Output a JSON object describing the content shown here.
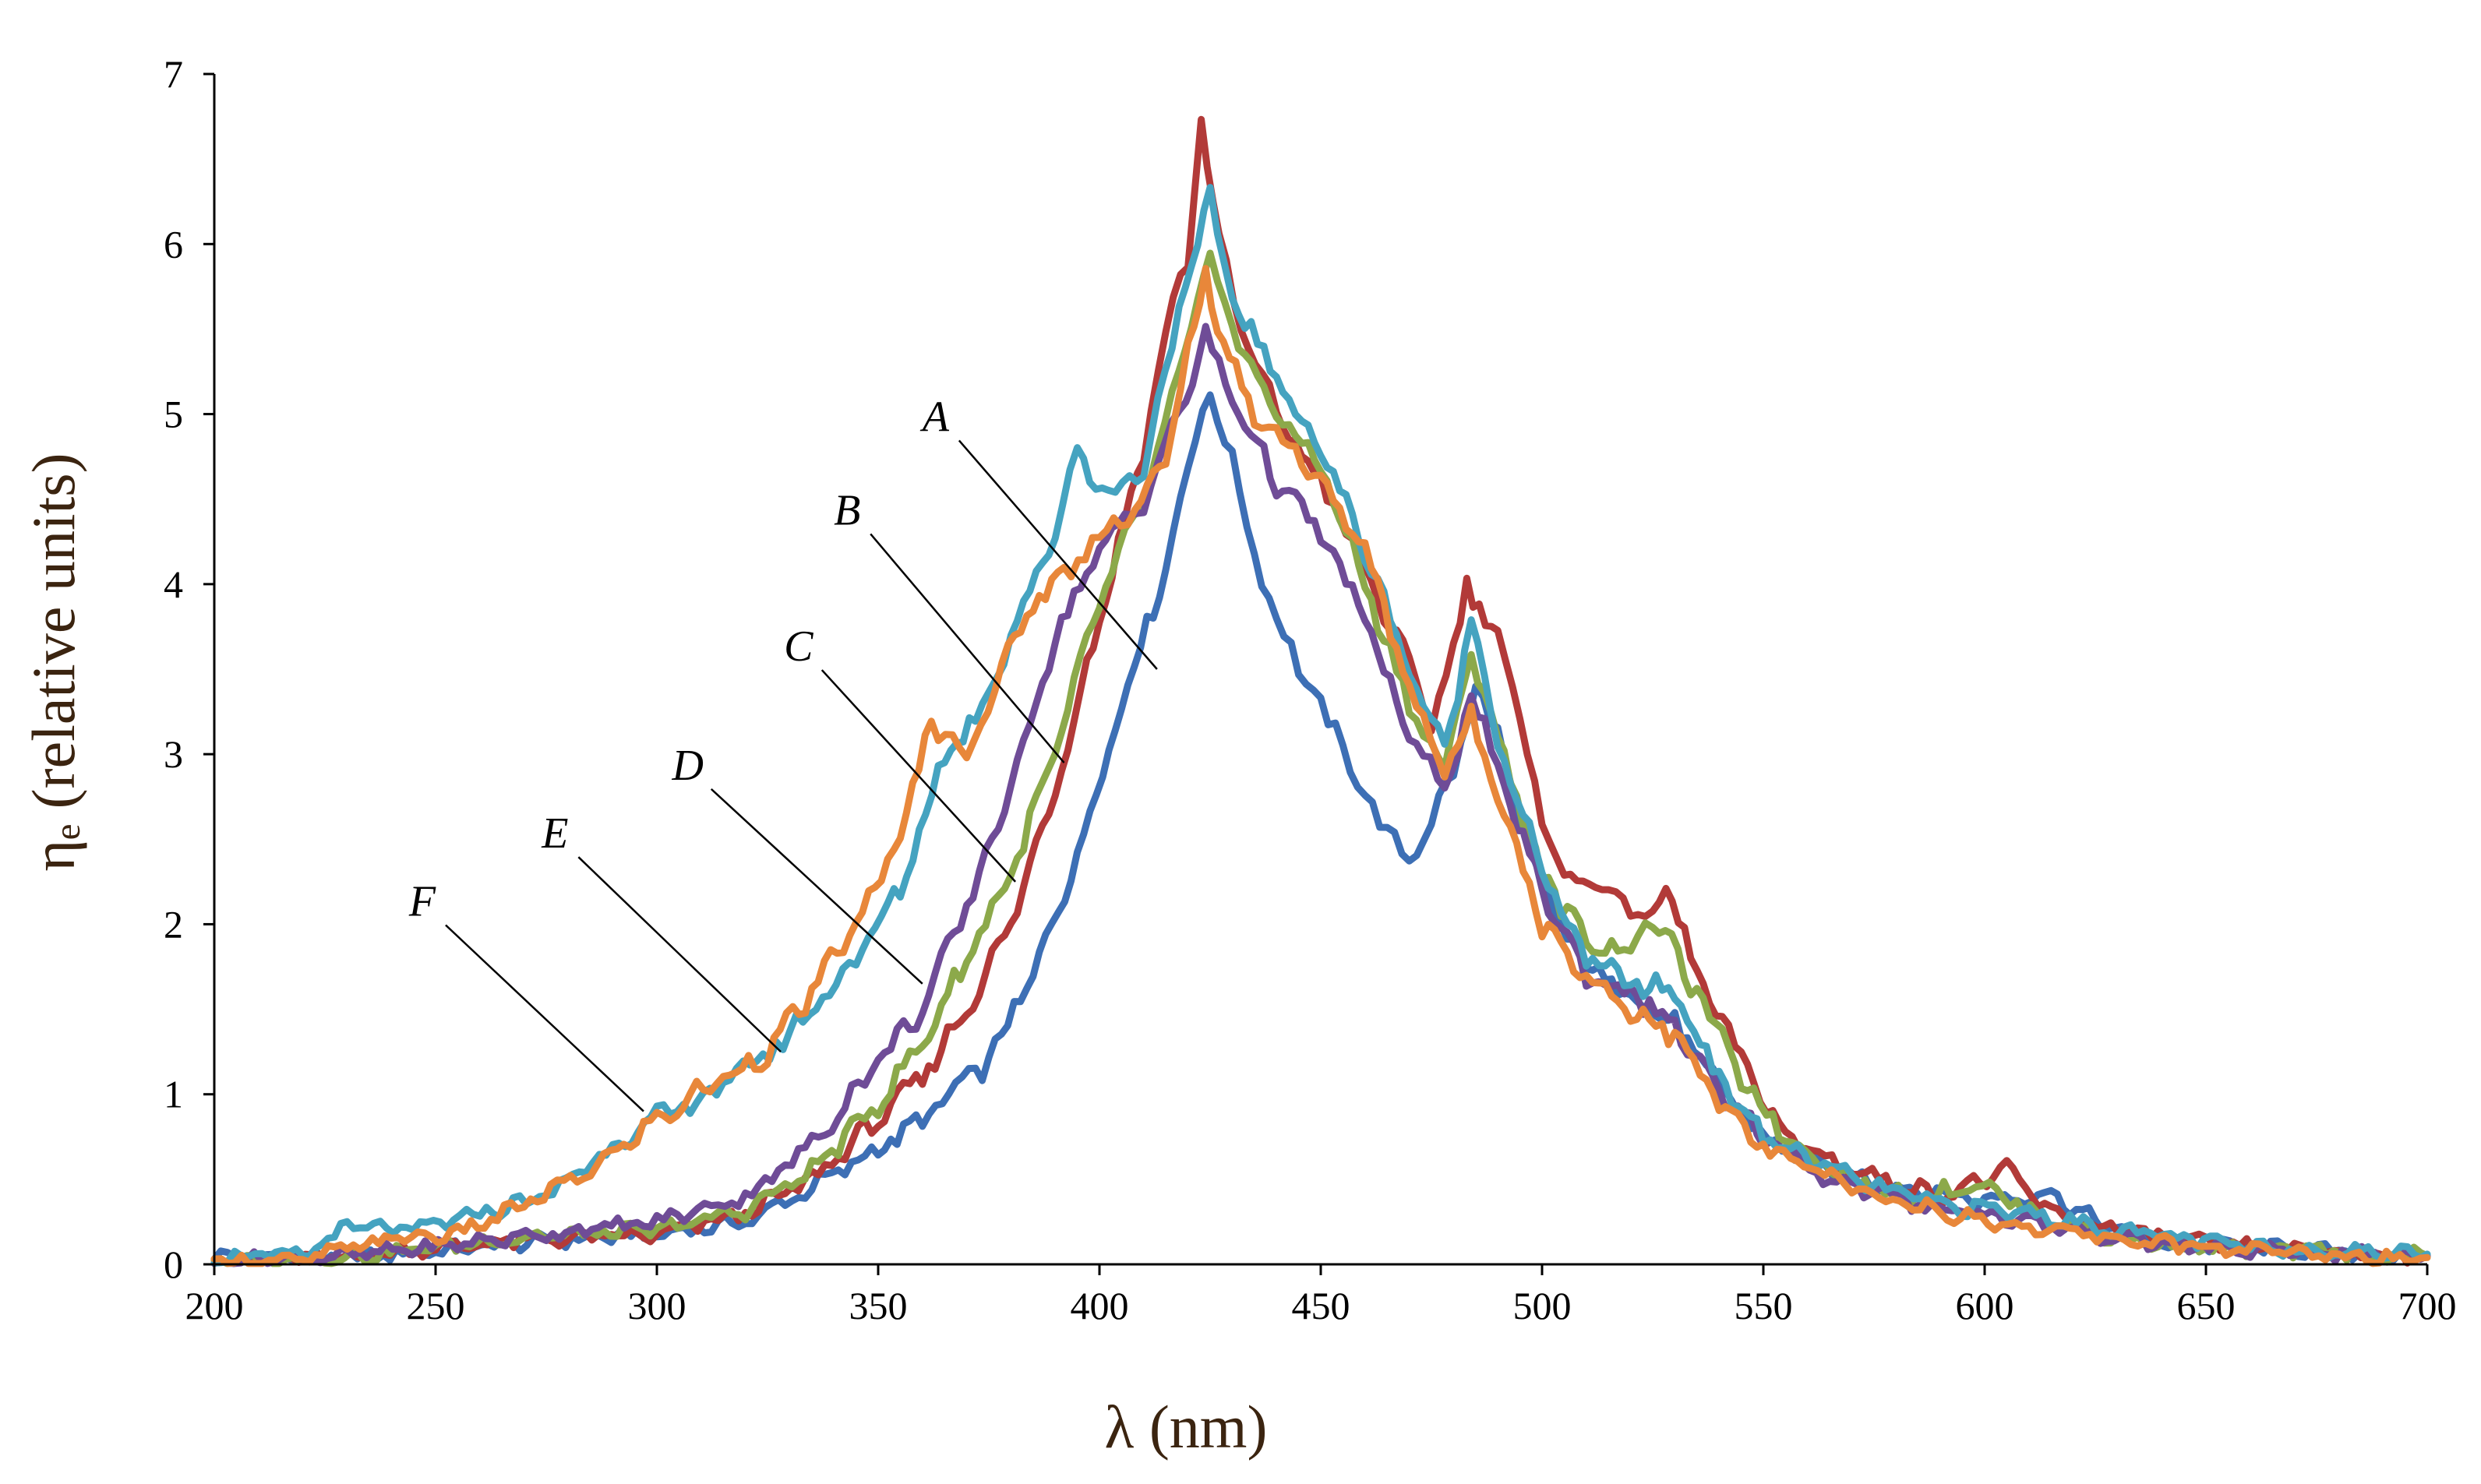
{
  "chart_data": {
    "type": "line",
    "title": "",
    "xlabel": "λ (nm)",
    "ylabel": "ηₑ (relative units)",
    "xlim": [
      200,
      700
    ],
    "ylim": [
      0,
      7
    ],
    "x_ticks": [
      "200",
      "250",
      "300",
      "350",
      "400",
      "450",
      "500",
      "550",
      "600",
      "650",
      "700"
    ],
    "y_ticks": [
      "0",
      "1",
      "2",
      "3",
      "4",
      "5",
      "6",
      "7"
    ],
    "grid": false,
    "legend": "none (curves labeled A–F with leader lines)",
    "series": [
      {
        "name": "A",
        "color": "#3d6fb5",
        "points": [
          [
            200,
            0.05
          ],
          [
            225,
            0.03
          ],
          [
            250,
            0.08
          ],
          [
            275,
            0.14
          ],
          [
            300,
            0.18
          ],
          [
            320,
            0.25
          ],
          [
            335,
            0.45
          ],
          [
            350,
            0.68
          ],
          [
            360,
            0.85
          ],
          [
            375,
            1.2
          ],
          [
            385,
            1.7
          ],
          [
            395,
            2.4
          ],
          [
            405,
            3.3
          ],
          [
            415,
            4.1
          ],
          [
            420,
            4.7
          ],
          [
            425,
            5.15
          ],
          [
            430,
            4.7
          ],
          [
            435,
            4.2
          ],
          [
            440,
            3.8
          ],
          [
            445,
            3.5
          ],
          [
            450,
            3.3
          ],
          [
            455,
            3.0
          ],
          [
            460,
            2.8
          ],
          [
            465,
            2.5
          ],
          [
            470,
            2.4
          ],
          [
            475,
            2.6
          ],
          [
            480,
            2.9
          ],
          [
            485,
            3.4
          ],
          [
            490,
            3.1
          ],
          [
            495,
            2.6
          ],
          [
            500,
            2.2
          ],
          [
            510,
            1.75
          ],
          [
            520,
            1.6
          ],
          [
            530,
            1.4
          ],
          [
            540,
            1.05
          ],
          [
            550,
            0.75
          ],
          [
            560,
            0.6
          ],
          [
            580,
            0.45
          ],
          [
            600,
            0.38
          ],
          [
            615,
            0.42
          ],
          [
            625,
            0.25
          ],
          [
            640,
            0.12
          ],
          [
            660,
            0.1
          ],
          [
            680,
            0.07
          ],
          [
            700,
            0.05
          ]
        ]
      },
      {
        "name": "B",
        "color": "#b23a38",
        "points": [
          [
            200,
            0.02
          ],
          [
            225,
            0.03
          ],
          [
            250,
            0.1
          ],
          [
            275,
            0.15
          ],
          [
            300,
            0.17
          ],
          [
            320,
            0.3
          ],
          [
            335,
            0.5
          ],
          [
            350,
            0.85
          ],
          [
            360,
            1.1
          ],
          [
            370,
            1.5
          ],
          [
            380,
            2.0
          ],
          [
            390,
            2.8
          ],
          [
            400,
            3.8
          ],
          [
            410,
            4.8
          ],
          [
            415,
            5.5
          ],
          [
            420,
            5.9
          ],
          [
            423,
            6.75
          ],
          [
            427,
            6.0
          ],
          [
            432,
            5.5
          ],
          [
            440,
            5.0
          ],
          [
            450,
            4.6
          ],
          [
            460,
            4.1
          ],
          [
            470,
            3.5
          ],
          [
            475,
            3.2
          ],
          [
            480,
            3.6
          ],
          [
            483,
            4.0
          ],
          [
            490,
            3.7
          ],
          [
            495,
            3.2
          ],
          [
            500,
            2.6
          ],
          [
            505,
            2.3
          ],
          [
            515,
            2.2
          ],
          [
            520,
            2.1
          ],
          [
            525,
            2.0
          ],
          [
            528,
            2.25
          ],
          [
            535,
            1.7
          ],
          [
            545,
            1.2
          ],
          [
            555,
            0.75
          ],
          [
            570,
            0.55
          ],
          [
            590,
            0.4
          ],
          [
            605,
            0.55
          ],
          [
            615,
            0.3
          ],
          [
            630,
            0.2
          ],
          [
            650,
            0.12
          ],
          [
            670,
            0.08
          ],
          [
            700,
            0.05
          ]
        ]
      },
      {
        "name": "C",
        "color": "#8ca94a",
        "points": [
          [
            200,
            0.02
          ],
          [
            225,
            0.03
          ],
          [
            250,
            0.1
          ],
          [
            270,
            0.16
          ],
          [
            300,
            0.2
          ],
          [
            320,
            0.32
          ],
          [
            335,
            0.55
          ],
          [
            350,
            0.95
          ],
          [
            360,
            1.3
          ],
          [
            370,
            1.8
          ],
          [
            380,
            2.3
          ],
          [
            390,
            3.0
          ],
          [
            400,
            3.9
          ],
          [
            410,
            4.5
          ],
          [
            418,
            5.2
          ],
          [
            425,
            5.95
          ],
          [
            430,
            5.5
          ],
          [
            440,
            5.0
          ],
          [
            450,
            4.7
          ],
          [
            460,
            4.0
          ],
          [
            470,
            3.3
          ],
          [
            478,
            2.9
          ],
          [
            484,
            3.6
          ],
          [
            490,
            3.1
          ],
          [
            500,
            2.3
          ],
          [
            510,
            1.9
          ],
          [
            520,
            1.85
          ],
          [
            525,
            2.05
          ],
          [
            535,
            1.6
          ],
          [
            545,
            1.1
          ],
          [
            555,
            0.75
          ],
          [
            570,
            0.5
          ],
          [
            585,
            0.38
          ],
          [
            598,
            0.48
          ],
          [
            615,
            0.25
          ],
          [
            630,
            0.15
          ],
          [
            650,
            0.1
          ],
          [
            700,
            0.05
          ]
        ]
      },
      {
        "name": "D",
        "color": "#6f4c97",
        "points": [
          [
            200,
            0.02
          ],
          [
            230,
            0.05
          ],
          [
            255,
            0.12
          ],
          [
            275,
            0.18
          ],
          [
            300,
            0.25
          ],
          [
            320,
            0.4
          ],
          [
            335,
            0.7
          ],
          [
            350,
            1.2
          ],
          [
            360,
            1.5
          ],
          [
            370,
            2.1
          ],
          [
            380,
            2.8
          ],
          [
            390,
            3.7
          ],
          [
            400,
            4.2
          ],
          [
            410,
            4.5
          ],
          [
            418,
            5.0
          ],
          [
            424,
            5.45
          ],
          [
            430,
            5.1
          ],
          [
            440,
            4.6
          ],
          [
            450,
            4.3
          ],
          [
            460,
            3.8
          ],
          [
            470,
            3.1
          ],
          [
            478,
            2.8
          ],
          [
            484,
            3.35
          ],
          [
            490,
            2.9
          ],
          [
            500,
            2.2
          ],
          [
            510,
            1.7
          ],
          [
            520,
            1.6
          ],
          [
            530,
            1.4
          ],
          [
            540,
            1.0
          ],
          [
            550,
            0.75
          ],
          [
            565,
            0.5
          ],
          [
            585,
            0.35
          ],
          [
            600,
            0.3
          ],
          [
            620,
            0.2
          ],
          [
            640,
            0.12
          ],
          [
            660,
            0.08
          ],
          [
            700,
            0.05
          ]
        ]
      },
      {
        "name": "E",
        "color": "#45a3c0",
        "points": [
          [
            200,
            0.05
          ],
          [
            220,
            0.05
          ],
          [
            230,
            0.22
          ],
          [
            245,
            0.2
          ],
          [
            260,
            0.3
          ],
          [
            275,
            0.4
          ],
          [
            290,
            0.7
          ],
          [
            300,
            0.85
          ],
          [
            315,
            1.05
          ],
          [
            330,
            1.35
          ],
          [
            345,
            1.8
          ],
          [
            355,
            2.2
          ],
          [
            365,
            3.0
          ],
          [
            372,
            3.2
          ],
          [
            380,
            3.7
          ],
          [
            390,
            4.3
          ],
          [
            395,
            4.8
          ],
          [
            402,
            4.5
          ],
          [
            410,
            4.7
          ],
          [
            418,
            5.6
          ],
          [
            425,
            6.25
          ],
          [
            430,
            5.7
          ],
          [
            440,
            5.2
          ],
          [
            450,
            4.8
          ],
          [
            460,
            4.2
          ],
          [
            470,
            3.5
          ],
          [
            478,
            3.0
          ],
          [
            484,
            3.8
          ],
          [
            490,
            3.1
          ],
          [
            500,
            2.3
          ],
          [
            510,
            1.8
          ],
          [
            520,
            1.65
          ],
          [
            530,
            1.6
          ],
          [
            540,
            1.1
          ],
          [
            550,
            0.75
          ],
          [
            570,
            0.5
          ],
          [
            590,
            0.35
          ],
          [
            610,
            0.3
          ],
          [
            630,
            0.2
          ],
          [
            660,
            0.1
          ],
          [
            700,
            0.06
          ]
        ]
      },
      {
        "name": "F",
        "color": "#e8873a",
        "points": [
          [
            200,
            0.02
          ],
          [
            220,
            0.02
          ],
          [
            230,
            0.1
          ],
          [
            240,
            0.15
          ],
          [
            255,
            0.18
          ],
          [
            270,
            0.35
          ],
          [
            285,
            0.55
          ],
          [
            300,
            0.85
          ],
          [
            315,
            1.1
          ],
          [
            325,
            1.25
          ],
          [
            335,
            1.6
          ],
          [
            345,
            2.0
          ],
          [
            355,
            2.5
          ],
          [
            362,
            3.2
          ],
          [
            370,
            3.0
          ],
          [
            378,
            3.5
          ],
          [
            385,
            3.9
          ],
          [
            392,
            4.05
          ],
          [
            400,
            4.3
          ],
          [
            408,
            4.45
          ],
          [
            415,
            4.7
          ],
          [
            420,
            5.4
          ],
          [
            424,
            5.8
          ],
          [
            428,
            5.4
          ],
          [
            435,
            5.0
          ],
          [
            440,
            4.9
          ],
          [
            450,
            4.6
          ],
          [
            460,
            4.2
          ],
          [
            470,
            3.4
          ],
          [
            478,
            2.9
          ],
          [
            484,
            3.2
          ],
          [
            490,
            2.8
          ],
          [
            500,
            2.0
          ],
          [
            510,
            1.7
          ],
          [
            520,
            1.5
          ],
          [
            530,
            1.35
          ],
          [
            540,
            0.95
          ],
          [
            550,
            0.68
          ],
          [
            570,
            0.45
          ],
          [
            590,
            0.3
          ],
          [
            610,
            0.22
          ],
          [
            630,
            0.15
          ],
          [
            650,
            0.1
          ],
          [
            680,
            0.05
          ],
          [
            700,
            0.04
          ]
        ]
      }
    ],
    "annotations": [
      {
        "label": "A",
        "text_at": [
          363,
          4.9
        ],
        "points_to": [
          413,
          3.5
        ]
      },
      {
        "label": "B",
        "text_at": [
          343,
          4.35
        ],
        "points_to": [
          392,
          2.95
        ]
      },
      {
        "label": "C",
        "text_at": [
          332,
          3.55
        ],
        "points_to": [
          381,
          2.25
        ]
      },
      {
        "label": "D",
        "text_at": [
          307,
          2.85
        ],
        "points_to": [
          360,
          1.65
        ]
      },
      {
        "label": "E",
        "text_at": [
          277,
          2.45
        ],
        "points_to": [
          328,
          1.25
        ]
      },
      {
        "label": "F",
        "text_at": [
          247,
          2.05
        ],
        "points_to": [
          297,
          0.9
        ]
      }
    ]
  }
}
